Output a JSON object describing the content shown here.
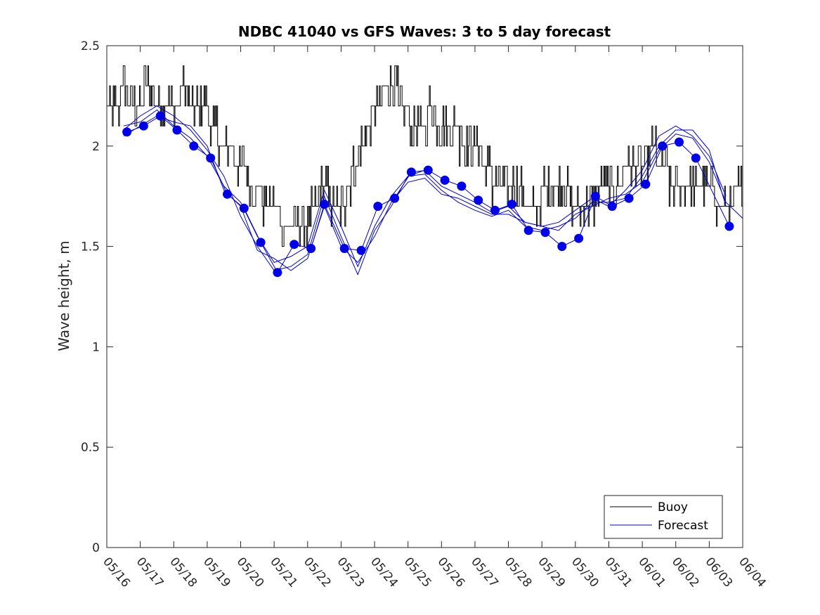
{
  "chart_data": {
    "type": "line",
    "title": "NDBC 41040 vs GFS Waves: 3 to 5 day forecast",
    "xlabel": "",
    "ylabel": "Wave height, m",
    "xlim": [
      "05/16",
      "06/04"
    ],
    "ylim": [
      0,
      2.5
    ],
    "x_ticks": [
      "05/16",
      "05/17",
      "05/18",
      "05/19",
      "05/20",
      "05/21",
      "05/22",
      "05/23",
      "05/24",
      "05/25",
      "05/26",
      "05/27",
      "05/28",
      "05/29",
      "05/30",
      "05/31",
      "06/01",
      "06/02",
      "06/03",
      "06/04"
    ],
    "y_ticks": [
      "0",
      "0.5",
      "1",
      "1.5",
      "2",
      "2.5"
    ],
    "grid": false,
    "legend": {
      "position": "bottom-right",
      "entries": [
        {
          "label": "Buoy",
          "color": "#000000"
        },
        {
          "label": "Forecast",
          "color": "#0000cc"
        }
      ]
    },
    "series": [
      {
        "name": "Buoy",
        "color": "#000000",
        "style": "step-noisy",
        "x": [
          0,
          0.2,
          0.4,
          0.6,
          0.8,
          1.0,
          1.2,
          1.4,
          1.6,
          1.8,
          2.0,
          2.2,
          2.4,
          2.6,
          2.8,
          3.0,
          3.2,
          3.4,
          3.6,
          3.8,
          4.0,
          4.2,
          4.4,
          4.6,
          4.8,
          5.0,
          5.2,
          5.4,
          5.6,
          5.8,
          6.0,
          6.2,
          6.4,
          6.6,
          6.8,
          7.0,
          7.2,
          7.4,
          7.6,
          7.8,
          8.0,
          8.2,
          8.4,
          8.6,
          8.8,
          9.0,
          9.2,
          9.4,
          9.6,
          9.8,
          10.0,
          10.2,
          10.4,
          10.6,
          10.8,
          11.0,
          11.2,
          11.4,
          11.6,
          11.8,
          12.0,
          12.2,
          12.4,
          12.6,
          12.8,
          13.0,
          13.2,
          13.4,
          13.6,
          13.8,
          14.0,
          14.2,
          14.4,
          14.6,
          14.8,
          15.0,
          15.2,
          15.4,
          15.6,
          15.8,
          16.0,
          16.2,
          16.4,
          16.6,
          16.8,
          17.0,
          17.2,
          17.4,
          17.6,
          17.8,
          18.0,
          18.2,
          18.4,
          18.6,
          18.8,
          19.0
        ],
        "values": [
          2.15,
          2.2,
          2.25,
          2.25,
          2.2,
          2.2,
          2.3,
          2.25,
          2.2,
          2.2,
          2.2,
          2.25,
          2.25,
          2.2,
          2.15,
          2.15,
          2.1,
          2.0,
          1.95,
          1.95,
          1.9,
          1.85,
          1.8,
          1.75,
          1.7,
          1.7,
          1.65,
          1.6,
          1.6,
          1.55,
          1.6,
          1.7,
          1.8,
          1.75,
          1.7,
          1.65,
          1.8,
          1.9,
          2.0,
          2.1,
          2.2,
          2.25,
          2.3,
          2.3,
          2.2,
          2.15,
          2.1,
          2.1,
          2.15,
          2.15,
          2.1,
          2.1,
          2.05,
          2.05,
          2.0,
          2.0,
          1.95,
          1.9,
          1.8,
          1.75,
          1.75,
          1.8,
          1.75,
          1.7,
          1.7,
          1.75,
          1.8,
          1.8,
          1.8,
          1.75,
          1.7,
          1.65,
          1.7,
          1.75,
          1.75,
          1.8,
          1.8,
          1.85,
          1.85,
          1.9,
          1.9,
          1.95,
          1.95,
          1.9,
          1.85,
          1.8,
          1.8,
          1.8,
          1.85,
          1.8,
          1.75,
          1.75,
          1.7,
          1.7,
          1.75,
          1.75
        ]
      },
      {
        "name": "Forecast",
        "color": "#0000cc",
        "marker": "dot",
        "x": [
          0.6,
          1.1,
          1.6,
          2.1,
          2.6,
          3.1,
          3.6,
          4.1,
          4.6,
          5.1,
          5.6,
          6.1,
          6.5,
          7.1,
          7.6,
          8.1,
          8.6,
          9.1,
          9.6,
          10.1,
          10.6,
          11.1,
          11.6,
          12.1,
          12.6,
          13.1,
          13.6,
          14.1,
          14.6,
          15.1,
          15.6,
          16.1,
          16.6,
          17.1,
          17.6,
          18.6
        ],
        "values": [
          2.07,
          2.1,
          2.15,
          2.08,
          2.0,
          1.94,
          1.76,
          1.69,
          1.52,
          1.37,
          1.51,
          1.49,
          1.71,
          1.49,
          1.48,
          1.7,
          1.74,
          1.87,
          1.88,
          1.83,
          1.8,
          1.73,
          1.68,
          1.71,
          1.58,
          1.57,
          1.5,
          1.54,
          1.75,
          1.7,
          1.74,
          1.81,
          2.0,
          2.02,
          1.94,
          1.6
        ]
      },
      {
        "name": "",
        "color": "#0000cc",
        "x": [
          0.5,
          1.0,
          1.5,
          2.0,
          2.5,
          3.0,
          3.5,
          4.0,
          4.5,
          5.0,
          5.5,
          6.0,
          6.5,
          7.0,
          7.5,
          8.0,
          8.5,
          9.0,
          9.5,
          10.0,
          10.5,
          11.0,
          11.5,
          12.0,
          12.5,
          13.0,
          13.5,
          14.0,
          14.5,
          15.0,
          15.5,
          16.0,
          16.5,
          17.0,
          17.5,
          18.0,
          18.5
        ],
        "values": [
          2.1,
          2.12,
          2.18,
          2.1,
          2.04,
          1.95,
          1.8,
          1.72,
          1.55,
          1.42,
          1.45,
          1.5,
          1.78,
          1.6,
          1.4,
          1.6,
          1.75,
          1.85,
          1.88,
          1.8,
          1.76,
          1.72,
          1.67,
          1.7,
          1.62,
          1.6,
          1.62,
          1.68,
          1.74,
          1.7,
          1.78,
          1.88,
          2.05,
          2.1,
          2.05,
          1.95,
          1.75
        ]
      },
      {
        "name": "",
        "color": "#0000cc",
        "x": [
          0.5,
          1.0,
          1.5,
          2.0,
          2.5,
          3.0,
          3.5,
          4.0,
          4.5,
          5.0,
          5.5,
          6.0,
          6.5,
          7.0,
          7.5,
          8.0,
          8.5,
          9.0,
          9.5,
          10.0,
          10.5,
          11.0,
          11.5,
          12.0,
          12.5,
          13.0,
          13.5,
          14.0,
          14.5,
          15.0,
          15.5,
          16.0,
          16.5,
          17.0,
          17.5,
          18.0,
          18.5
        ],
        "values": [
          2.08,
          2.15,
          2.2,
          2.15,
          2.08,
          1.98,
          1.85,
          1.65,
          1.5,
          1.38,
          1.4,
          1.46,
          1.75,
          1.55,
          1.36,
          1.58,
          1.7,
          1.85,
          1.86,
          1.78,
          1.72,
          1.68,
          1.65,
          1.68,
          1.6,
          1.58,
          1.6,
          1.64,
          1.72,
          1.72,
          1.74,
          1.85,
          2.0,
          2.08,
          2.08,
          1.98,
          1.7
        ]
      },
      {
        "name": "",
        "color": "#0000cc",
        "x": [
          0.5,
          1.0,
          1.5,
          2.0,
          2.5,
          3.0,
          3.5,
          4.0,
          4.5,
          5.0,
          5.5,
          6.0,
          6.5,
          7.0,
          7.5,
          8.0,
          8.5,
          9.0,
          9.5,
          10.0,
          10.5,
          11.0,
          11.5,
          12.0,
          12.5,
          13.0,
          13.5,
          14.0,
          14.5,
          15.0,
          15.5,
          16.0,
          16.5,
          17.0,
          17.5,
          18.0,
          18.5,
          19.0
        ],
        "values": [
          2.05,
          2.1,
          2.15,
          2.12,
          2.1,
          2.0,
          1.78,
          1.7,
          1.48,
          1.44,
          1.38,
          1.44,
          1.7,
          1.5,
          1.42,
          1.55,
          1.72,
          1.82,
          1.84,
          1.76,
          1.74,
          1.7,
          1.66,
          1.66,
          1.62,
          1.6,
          1.58,
          1.66,
          1.7,
          1.74,
          1.76,
          1.82,
          1.98,
          2.06,
          2.04,
          1.92,
          1.72,
          1.64
        ]
      }
    ]
  }
}
